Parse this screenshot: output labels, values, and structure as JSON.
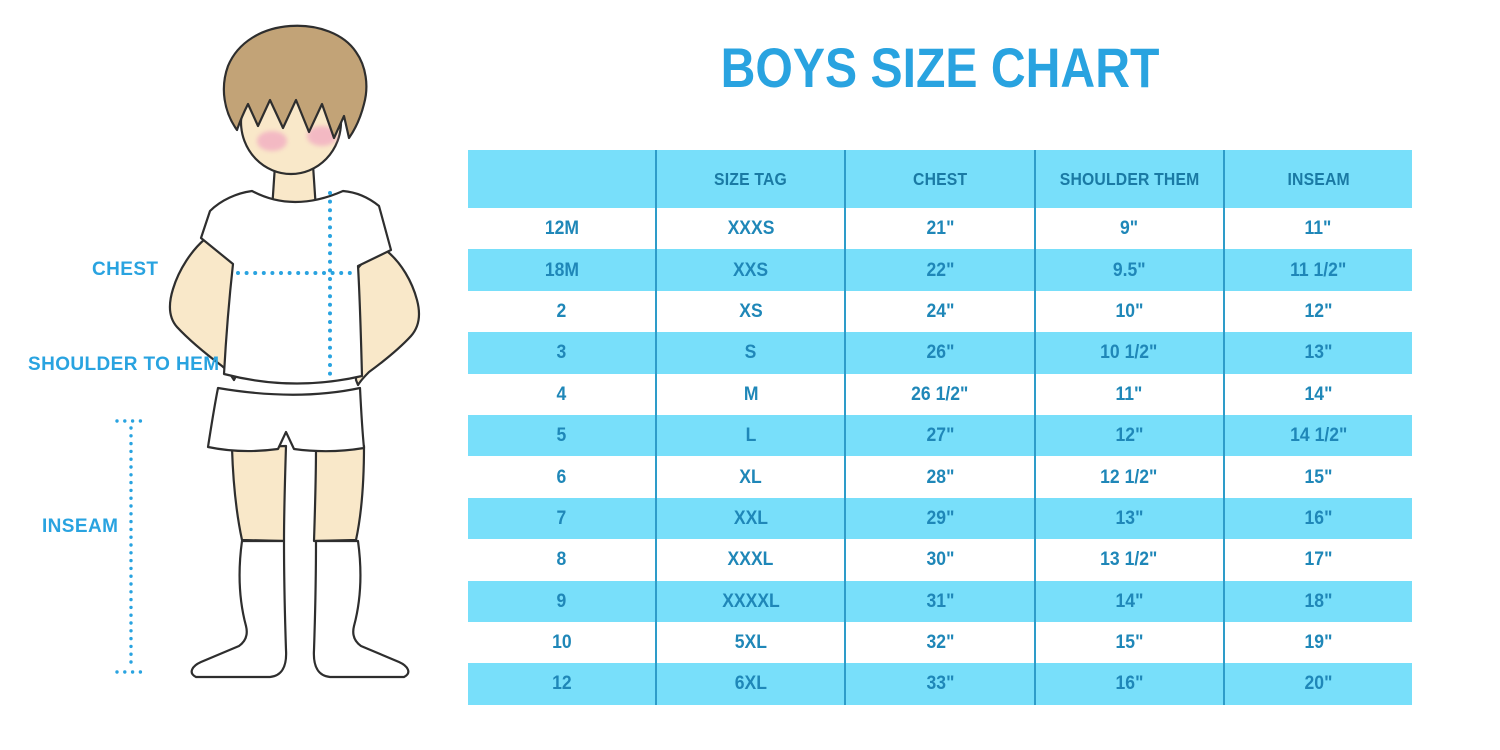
{
  "chart_data": {
    "type": "table",
    "title": "BOYS SIZE CHART",
    "columns": [
      "",
      "SIZE TAG",
      "CHEST",
      "SHOULDER THEM",
      "INSEAM"
    ],
    "rows": [
      [
        "12M",
        "XXXS",
        "21\"",
        "9\"",
        "11\""
      ],
      [
        "18M",
        "XXS",
        "22\"",
        "9.5\"",
        "11 1/2\""
      ],
      [
        "2",
        "XS",
        "24\"",
        "10\"",
        "12\""
      ],
      [
        "3",
        "S",
        "26\"",
        "10 1/2\"",
        "13\""
      ],
      [
        "4",
        "M",
        "26 1/2\"",
        "11\"",
        "14\""
      ],
      [
        "5",
        "L",
        "27\"",
        "12\"",
        "14 1/2\""
      ],
      [
        "6",
        "XL",
        "28\"",
        "12 1/2\"",
        "15\""
      ],
      [
        "7",
        "XXL",
        "29\"",
        "13\"",
        "16\""
      ],
      [
        "8",
        "XXXL",
        "30\"",
        "13 1/2\"",
        "17\""
      ],
      [
        "9",
        "XXXXL",
        "31\"",
        "14\"",
        "18\""
      ],
      [
        "10",
        "5XL",
        "32\"",
        "15\"",
        "19\""
      ],
      [
        "12",
        "6XL",
        "33\"",
        "16\"",
        "20\""
      ]
    ],
    "layout": {
      "alternating_row_colors": true,
      "first_data_row": "white",
      "legend": "none",
      "grid": "vertical-separators-only"
    }
  },
  "figure": {
    "chest_label": "CHEST",
    "shoulder_to_hem_label": "SHOULDER TO HEM",
    "inseam_label": "INSEAM"
  },
  "colors": {
    "accent": "#29a3e0",
    "cyan": "#78dffa",
    "line": "#2e9cc9",
    "header_text": "#1a7aa4",
    "cell_text": "#1f87b8",
    "skin": "#f9e8c9",
    "hair": "#c2a377",
    "blush": "#f2aec2",
    "outline": "#2e2e2e"
  }
}
